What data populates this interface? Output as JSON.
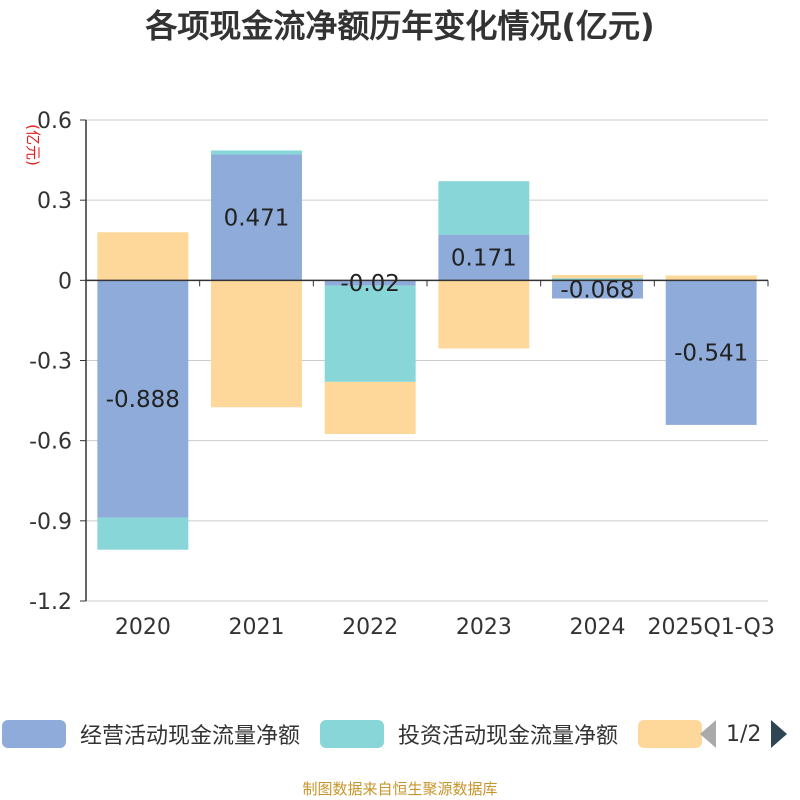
{
  "title": "各项现金流净额历年变化情况(亿元)",
  "unit_label": "(亿元)",
  "legend": {
    "items": [
      {
        "label": "经营活动现金流量净额",
        "color": "#8eabd9"
      },
      {
        "label": "投资活动现金流量净额",
        "color": "#88d6d8"
      },
      {
        "label": "",
        "color": "#fdd89a"
      }
    ],
    "page": "1/2"
  },
  "footer": "制图数据来自恒生聚源数据库",
  "chart_data": {
    "type": "bar",
    "stacked": true,
    "categories": [
      "2020",
      "2021",
      "2022",
      "2023",
      "2024",
      "2025Q1-Q3"
    ],
    "ylim": [
      -1.2,
      0.6
    ],
    "yticks": [
      0.6,
      0.3,
      0,
      -0.3,
      -0.6,
      -0.9,
      -1.2
    ],
    "ytick_labels": [
      "0.6",
      "0.3",
      "0",
      "-0.3",
      "-0.6",
      "-0.9",
      "-1.2"
    ],
    "grid": true,
    "legend_position": "bottom",
    "series": [
      {
        "name": "经营活动现金流量净额",
        "color": "#8eabd9",
        "values": [
          -0.888,
          0.471,
          -0.02,
          0.171,
          -0.068,
          -0.541
        ],
        "labels": [
          "-0.888",
          "0.471",
          "-0.02",
          "0.171",
          "-0.068",
          "-0.541"
        ]
      },
      {
        "name": "投资活动现金流量净额",
        "color": "#88d6d8",
        "values": [
          -0.12,
          0.015,
          -0.36,
          0.2,
          0.008,
          0
        ]
      },
      {
        "color": "#fdd89a",
        "values": [
          0.18,
          -0.475,
          -0.195,
          -0.255,
          0.012,
          0.018
        ]
      }
    ]
  }
}
